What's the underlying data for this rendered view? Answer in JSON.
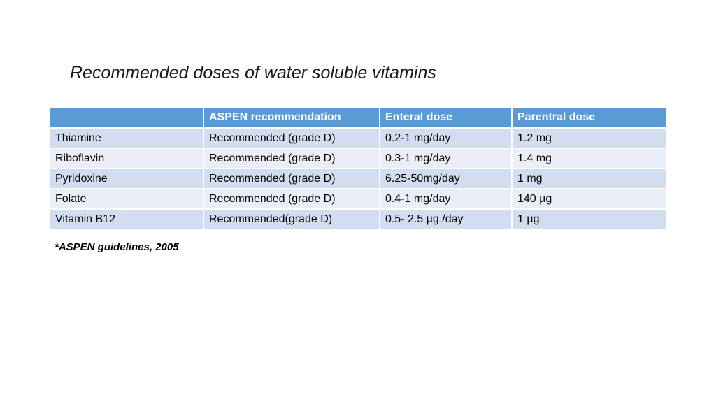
{
  "title": "Recommended doses of water soluble vitamins",
  "table": {
    "headers": [
      "",
      "ASPEN recommendation",
      "Enteral dose",
      "Parentral dose"
    ],
    "rows": [
      [
        "Thiamine",
        "Recommended (grade D)",
        "0.2-1 mg/day",
        "1.2 mg"
      ],
      [
        "Riboflavin",
        "Recommended (grade D)",
        "0.3-1 mg/day",
        "1.4 mg"
      ],
      [
        "Pyridoxine",
        "Recommended (grade D)",
        "6.25-50mg/day",
        "1 mg"
      ],
      [
        "Folate",
        "Recommended (grade D)",
        "0.4-1 mg/day",
        "140 µg"
      ],
      [
        "Vitamin B12",
        "Recommended(grade D)",
        "0.5- 2.5 µg /day",
        "1 µg"
      ]
    ]
  },
  "footnote": "*ASPEN guidelines, 2005",
  "colors": {
    "header_bg": "#5b9bd5",
    "row_odd_bg": "#d2deef",
    "row_even_bg": "#eaeff7"
  }
}
